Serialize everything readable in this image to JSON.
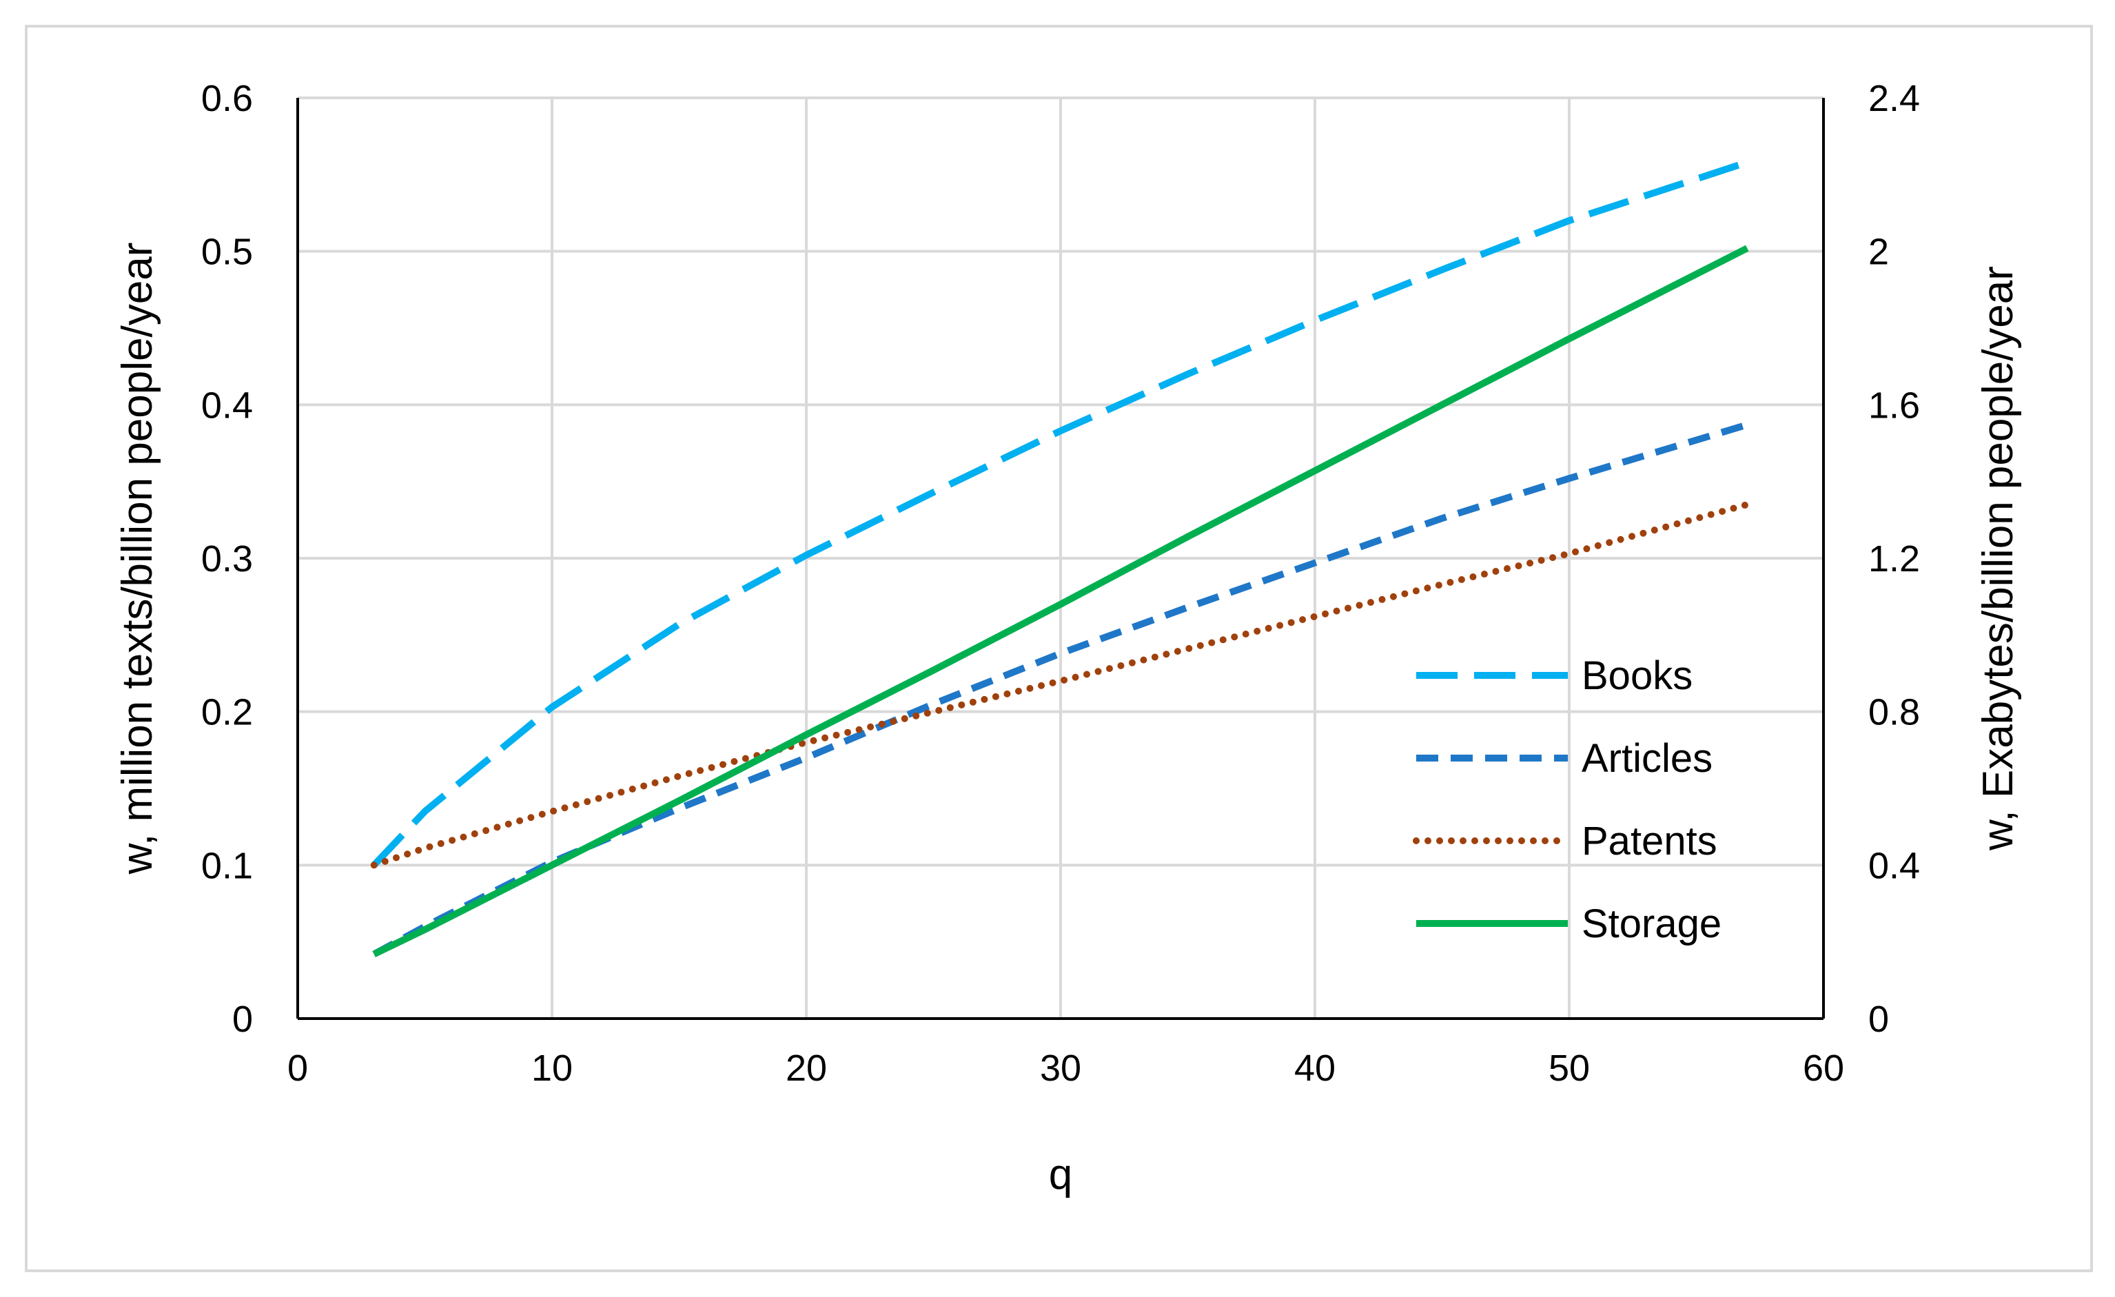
{
  "chart_data": {
    "type": "line",
    "title": "",
    "xlabel": "q",
    "ylabel_left": "w, million texts/billion people/year",
    "ylabel_right": "w, Exabytes/billion people/year",
    "xlim": [
      0,
      60
    ],
    "ylim_left": [
      0,
      0.6
    ],
    "ylim_right": [
      0,
      2.4
    ],
    "x_ticks": [
      0,
      10,
      20,
      30,
      40,
      50,
      60
    ],
    "y_ticks_left": [
      0,
      0.1,
      0.2,
      0.3,
      0.4,
      0.5,
      0.6
    ],
    "y_ticks_right": [
      0,
      0.4,
      0.8,
      1.2,
      1.6,
      2,
      2.4
    ],
    "grid": true,
    "legend_position": "right-middle",
    "x": [
      3,
      5,
      10,
      15,
      20,
      25,
      30,
      35,
      40,
      45,
      50,
      57
    ],
    "series": [
      {
        "name": "Books",
        "axis": "left",
        "color": "#00b0f0",
        "dash": "long-dash",
        "values": [
          0.1,
          0.135,
          0.203,
          0.257,
          0.302,
          0.343,
          0.383,
          0.42,
          0.455,
          0.488,
          0.52,
          0.558
        ]
      },
      {
        "name": "Articles",
        "axis": "left",
        "color": "#1f77c8",
        "dash": "dash",
        "values": [
          0.042,
          0.06,
          0.102,
          0.137,
          0.17,
          0.205,
          0.238,
          0.268,
          0.297,
          0.326,
          0.352,
          0.387
        ]
      },
      {
        "name": "Patents",
        "axis": "left",
        "color": "#a0410d",
        "dash": "dot",
        "values": [
          0.1,
          0.111,
          0.135,
          0.158,
          0.18,
          0.2,
          0.22,
          0.241,
          0.262,
          0.283,
          0.303,
          0.335
        ]
      },
      {
        "name": "Storage",
        "axis": "left",
        "color": "#00b050",
        "dash": "solid",
        "values": [
          0.042,
          0.058,
          0.1,
          0.142,
          0.185,
          0.227,
          0.27,
          0.314,
          0.357,
          0.4,
          0.443,
          0.502
        ]
      }
    ]
  }
}
